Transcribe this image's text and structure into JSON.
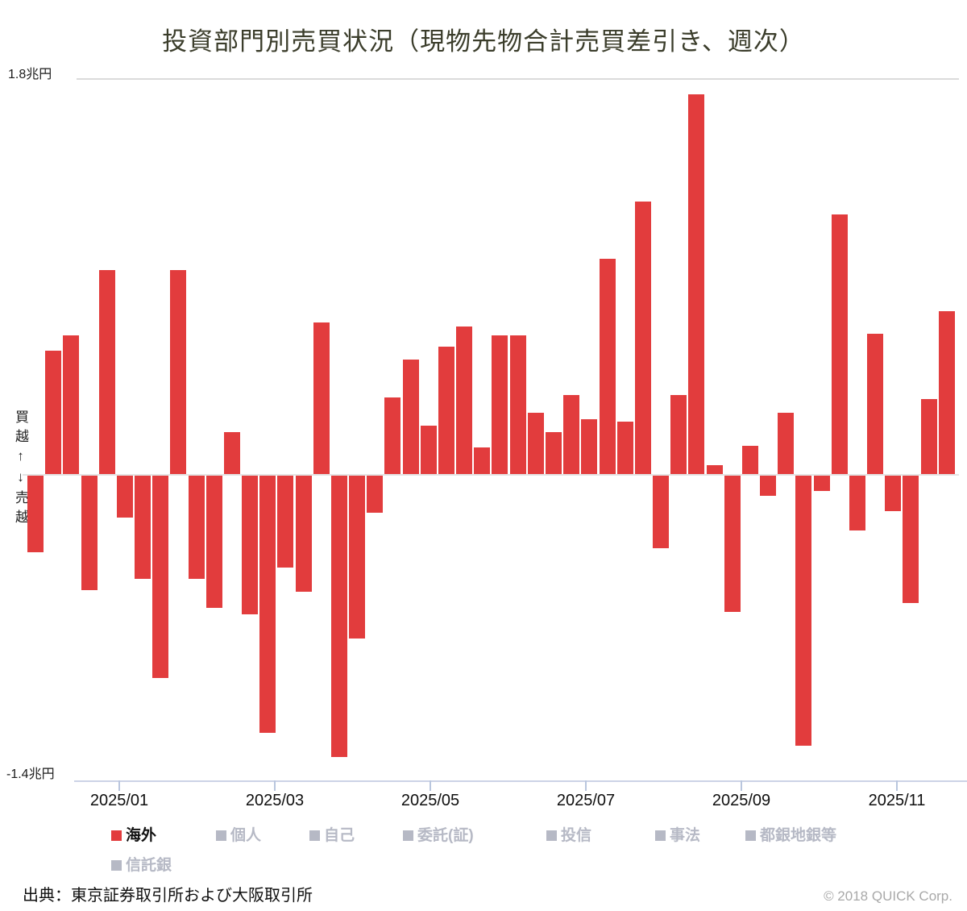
{
  "title": "投資部門別売買状況（現物先物合計売買差引き、週次）",
  "y_axis": {
    "top_label": "1.8兆円",
    "bottom_label": "-1.4兆円",
    "side_annotation": "買越↑↓売越"
  },
  "legend": {
    "items": [
      {
        "key": "overseas",
        "label": "海外",
        "active": true
      },
      {
        "key": "individuals",
        "label": "個人",
        "active": false
      },
      {
        "key": "proprietary",
        "label": "自己",
        "active": false
      },
      {
        "key": "brokerage-consignment",
        "label": "委託(証)",
        "active": false
      },
      {
        "key": "investment-trusts",
        "label": "投信",
        "active": false
      },
      {
        "key": "business-corporations",
        "label": "事法",
        "active": false
      },
      {
        "key": "city-regional-banks",
        "label": "都銀地銀等",
        "active": false
      },
      {
        "key": "trust-banks",
        "label": "信託銀",
        "active": false
      }
    ]
  },
  "footer": {
    "source": "出典：東京証券取引所および大阪取引所",
    "copyright": "© 2018 QUICK Corp."
  },
  "colors": {
    "bar": "#e23c3d",
    "inactive_gray": "#b6b9c5",
    "active_label": "#111111",
    "axis_line": "#ccd3e6",
    "tick": "#b9c6de"
  },
  "chart_data": {
    "type": "bar",
    "title": "投資部門別売買状況（現物先物合計売買差引き、週次）",
    "unit": "兆円 (trillion yen)",
    "frequency": "weekly",
    "ylim": [
      -1.4,
      1.8
    ],
    "y_top_label": "1.8兆円",
    "y_bottom_label": "-1.4兆円",
    "y_positive_meaning": "買越",
    "y_negative_meaning": "売越",
    "grid": "top boundary line, zero line and bottom axis only",
    "legend_position": "bottom",
    "x_tick_labels": [
      "2025/01",
      "2025/03",
      "2025/05",
      "2025/07",
      "2025/09",
      "2025/11"
    ],
    "series": [
      {
        "name": "海外",
        "values": [
          -0.35,
          0.56,
          0.63,
          -0.52,
          0.93,
          -0.19,
          -0.47,
          -0.92,
          0.93,
          -0.47,
          -0.6,
          0.19,
          -0.63,
          -1.17,
          -0.42,
          -0.53,
          0.69,
          -1.28,
          -0.74,
          -0.17,
          0.35,
          0.52,
          0.22,
          0.58,
          0.67,
          0.12,
          0.63,
          0.63,
          0.28,
          0.19,
          0.36,
          0.25,
          0.98,
          0.24,
          1.24,
          -0.33,
          0.36,
          1.73,
          0.04,
          -0.62,
          0.13,
          -0.09,
          0.28,
          -1.23,
          -0.07,
          1.18,
          -0.25,
          0.64,
          -0.16,
          -0.58,
          0.34,
          0.74
        ]
      }
    ]
  }
}
